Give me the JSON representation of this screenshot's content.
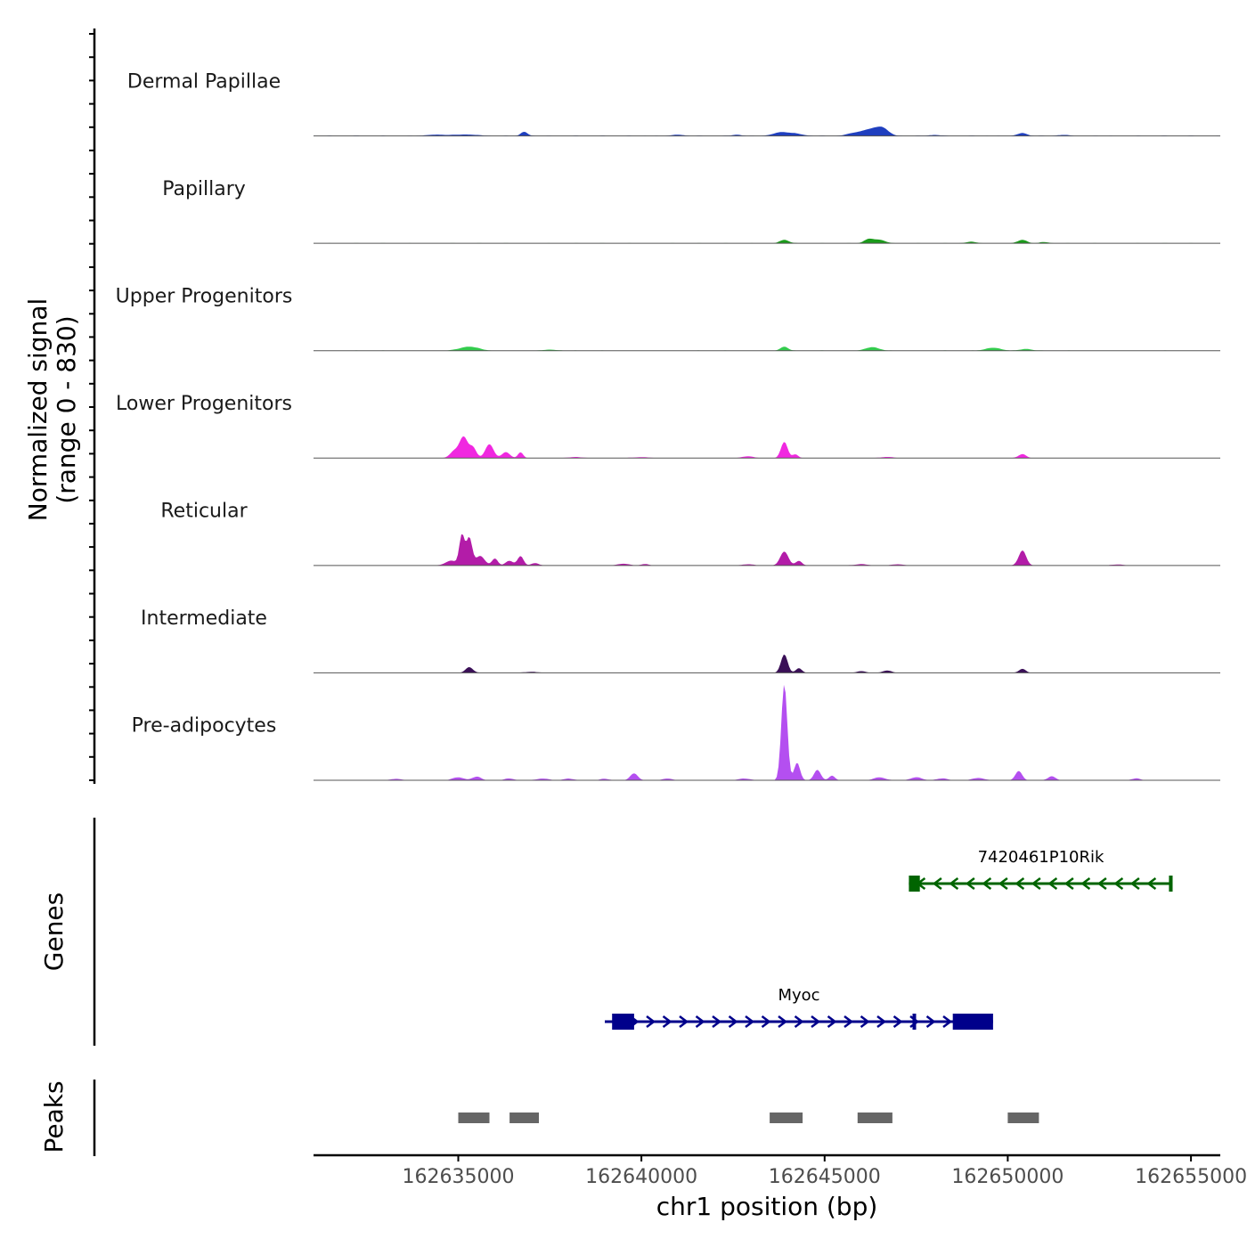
{
  "chart_data": {
    "type": "area",
    "title": "",
    "ylabel_line1": "Normalized signal",
    "ylabel_line2": "(range 0 - 830)",
    "y_range": [
      0,
      830
    ],
    "xlabel": "chr1 position (bp)",
    "xlim": [
      162631050,
      162655800
    ],
    "x_ticks": [
      162635000,
      162640000,
      162645000,
      162650000,
      162655000
    ],
    "x_tick_labels": [
      "162635000",
      "162640000",
      "162645000",
      "162650000",
      "162655000"
    ],
    "tracks": [
      {
        "name": "Dermal Papillae",
        "color": "#1f3fbf",
        "peaks": [
          [
            162634400,
            10,
            250
          ],
          [
            162635200,
            12,
            300
          ],
          [
            162636800,
            35,
            90
          ],
          [
            162641000,
            10,
            150
          ],
          [
            162642600,
            10,
            120
          ],
          [
            162643800,
            30,
            200
          ],
          [
            162644200,
            18,
            200
          ],
          [
            162645800,
            20,
            200
          ],
          [
            162646300,
            60,
            250
          ],
          [
            162646600,
            45,
            150
          ],
          [
            162648000,
            8,
            150
          ],
          [
            162650400,
            25,
            120
          ],
          [
            162651500,
            8,
            150
          ]
        ]
      },
      {
        "name": "Papillary",
        "color": "#1a9b1a",
        "peaks": [
          [
            162643900,
            30,
            120
          ],
          [
            162646200,
            35,
            120
          ],
          [
            162646500,
            30,
            150
          ],
          [
            162649000,
            12,
            150
          ],
          [
            162650400,
            30,
            120
          ],
          [
            162651000,
            10,
            120
          ]
        ]
      },
      {
        "name": "Upper Progenitors",
        "color": "#33cc4d",
        "peaks": [
          [
            162635300,
            35,
            250
          ],
          [
            162637500,
            8,
            200
          ],
          [
            162643900,
            35,
            100
          ],
          [
            162646300,
            30,
            180
          ],
          [
            162649600,
            25,
            200
          ],
          [
            162650500,
            15,
            150
          ]
        ]
      },
      {
        "name": "Lower Progenitors",
        "color": "#f028e0",
        "peaks": [
          [
            162634900,
            60,
            120
          ],
          [
            162635150,
            180,
            110
          ],
          [
            162635400,
            90,
            90
          ],
          [
            162635850,
            120,
            110
          ],
          [
            162636300,
            50,
            110
          ],
          [
            162636700,
            50,
            70
          ],
          [
            162638200,
            8,
            200
          ],
          [
            162640000,
            8,
            200
          ],
          [
            162642900,
            15,
            150
          ],
          [
            162643900,
            140,
            90
          ],
          [
            162644200,
            30,
            80
          ],
          [
            162646700,
            10,
            150
          ],
          [
            162650400,
            35,
            100
          ]
        ]
      },
      {
        "name": "Reticular",
        "color": "#b31ca8",
        "peaks": [
          [
            162634800,
            40,
            150
          ],
          [
            162635100,
            260,
            70
          ],
          [
            162635300,
            240,
            80
          ],
          [
            162635600,
            80,
            120
          ],
          [
            162636000,
            60,
            80
          ],
          [
            162636400,
            40,
            100
          ],
          [
            162636700,
            80,
            80
          ],
          [
            162637100,
            20,
            100
          ],
          [
            162639500,
            15,
            150
          ],
          [
            162640100,
            12,
            100
          ],
          [
            162642900,
            10,
            150
          ],
          [
            162643900,
            120,
            110
          ],
          [
            162644300,
            40,
            80
          ],
          [
            162646000,
            12,
            150
          ],
          [
            162647000,
            10,
            150
          ],
          [
            162650400,
            130,
            100
          ],
          [
            162653000,
            8,
            150
          ]
        ]
      },
      {
        "name": "Intermediate",
        "color": "#3a0f57",
        "peaks": [
          [
            162635300,
            50,
            100
          ],
          [
            162637000,
            8,
            200
          ],
          [
            162643900,
            160,
            90
          ],
          [
            162644300,
            40,
            80
          ],
          [
            162646000,
            15,
            120
          ],
          [
            162646700,
            20,
            120
          ],
          [
            162650400,
            35,
            90
          ]
        ]
      },
      {
        "name": "Pre-adipocytes",
        "color": "#b44ff0",
        "peaks": [
          [
            162633300,
            12,
            150
          ],
          [
            162635000,
            25,
            150
          ],
          [
            162635500,
            30,
            120
          ],
          [
            162636400,
            15,
            120
          ],
          [
            162637300,
            15,
            150
          ],
          [
            162638000,
            15,
            120
          ],
          [
            162639000,
            12,
            120
          ],
          [
            162639800,
            60,
            100
          ],
          [
            162640700,
            15,
            120
          ],
          [
            162642800,
            15,
            150
          ],
          [
            162643900,
            830,
            80
          ],
          [
            162644250,
            150,
            80
          ],
          [
            162644800,
            90,
            90
          ],
          [
            162645200,
            40,
            80
          ],
          [
            162646500,
            25,
            150
          ],
          [
            162647500,
            25,
            150
          ],
          [
            162648200,
            15,
            150
          ],
          [
            162649200,
            20,
            150
          ],
          [
            162650300,
            80,
            90
          ],
          [
            162651200,
            35,
            100
          ],
          [
            162653500,
            15,
            120
          ]
        ]
      }
    ],
    "genes_label": "Genes",
    "genes": [
      {
        "name": "7420461P10Rik",
        "color": "#006400",
        "strand": "-",
        "start": 162647300,
        "end": 162654500,
        "exons": [
          [
            162647300,
            162647600
          ],
          [
            162654400,
            162654500
          ]
        ]
      },
      {
        "name": "Myoc",
        "color": "#00008b",
        "strand": "+",
        "start": 162639000,
        "end": 162649600,
        "exons": [
          [
            162639200,
            162639800
          ],
          [
            162647400,
            162647450
          ],
          [
            162648500,
            162649600
          ]
        ]
      }
    ],
    "peaks_label": "Peaks",
    "peak_regions": [
      [
        162635000,
        162635850
      ],
      [
        162636400,
        162637200
      ],
      [
        162643500,
        162644400
      ],
      [
        162645900,
        162646850
      ],
      [
        162650000,
        162650850
      ]
    ]
  }
}
